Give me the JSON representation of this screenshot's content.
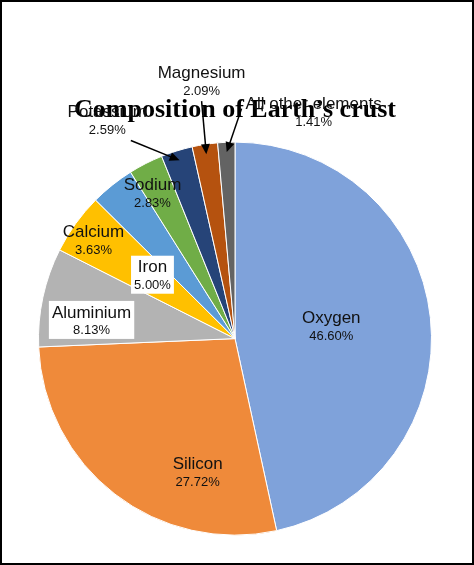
{
  "chart_data": {
    "type": "pie",
    "title": "Composition of Earth’s crust",
    "categories": [
      "Oxygen",
      "Silicon",
      "Aluminium",
      "Iron",
      "Calcium",
      "Sodium",
      "Potassium",
      "Magnesium",
      "All other elements"
    ],
    "values": [
      46.6,
      27.72,
      8.13,
      5.0,
      3.63,
      2.83,
      2.59,
      2.09,
      1.41
    ],
    "value_labels": [
      "46.60%",
      "27.72%",
      "8.13%",
      "5.00%",
      "3.63%",
      "2.83%",
      "2.59%",
      "2.09%",
      "1.41%"
    ],
    "colors": [
      "#7fa2da",
      "#ef8a3a",
      "#b3b3b3",
      "#ffc000",
      "#5b9bd5",
      "#70ad47",
      "#264478",
      "#b5520f",
      "#636363"
    ],
    "data_labels": true
  }
}
